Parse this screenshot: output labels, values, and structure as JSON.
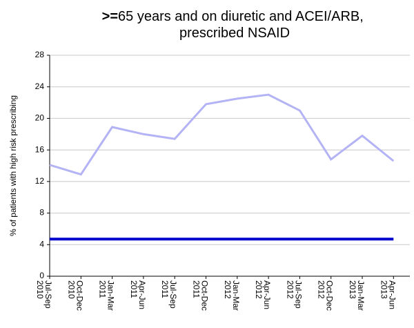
{
  "chart_data": {
    "type": "line",
    "title": ">=65 years and on diuretic and ACEI/ARB, prescribed NSAID",
    "ylabel": "% of patients with high risk prescribing",
    "categories": [
      "Jul-Sep 2010",
      "Oct-Dec 2010",
      "Jan-Mar 2011",
      "Apr-Jun 2011",
      "Jul-Sep 2011",
      "Oct-Dec 2011",
      "Jan-Mar 2012",
      "Apr-Jun 2012",
      "Jul-Sep 2012",
      "Oct-Dec 2012",
      "Jan-Mar 2013",
      "Apr-Jun 2013"
    ],
    "series": [
      {
        "color": "#b3b3f5",
        "values": [
          14.1,
          12.9,
          18.9,
          18.0,
          17.4,
          21.8,
          22.5,
          23.0,
          21.0,
          14.8,
          17.8,
          14.6
        ]
      },
      {
        "color": "#0000cc",
        "values": [
          4.7,
          4.7,
          4.7,
          4.7,
          4.7,
          4.7,
          4.7,
          4.7,
          4.7,
          4.7,
          4.7,
          4.7
        ]
      }
    ],
    "ylim": [
      0,
      28
    ],
    "yticks": [
      0,
      4,
      8,
      12,
      16,
      20,
      24,
      28
    ],
    "grid": true
  }
}
